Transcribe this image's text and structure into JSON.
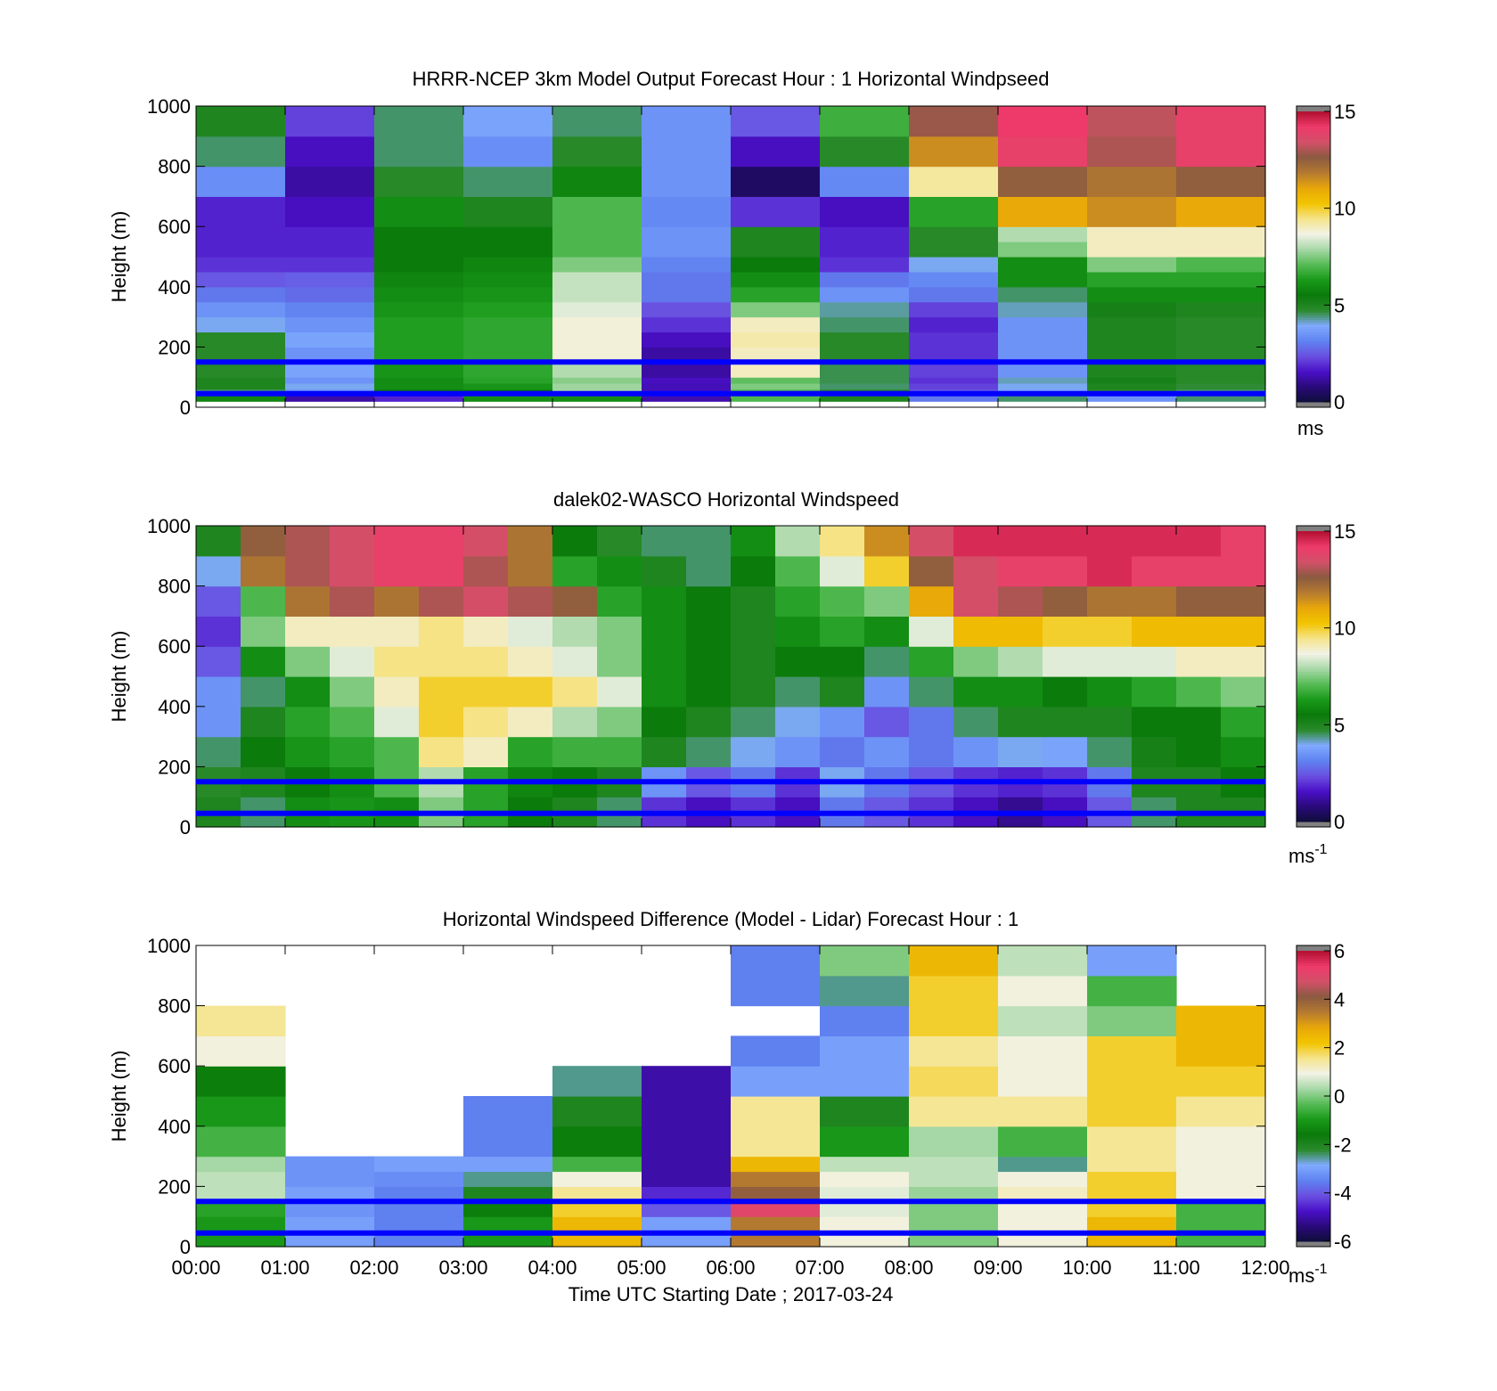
{
  "colormap": [
    "#0e0e3a",
    "#2a0a7a",
    "#4a10c8",
    "#6a50e0",
    "#5f82f0",
    "#80aaff",
    "#2a8a2a",
    "#0a7a0a",
    "#1a9a1a",
    "#55bb55",
    "#a8d8a8",
    "#f2f2e6",
    "#f5e48a",
    "#f2c400",
    "#e8a70a",
    "#b57a30",
    "#8a5a40",
    "#d25068",
    "#ee3a6a",
    "#b01030"
  ],
  "colorbar_end": "#808080",
  "line_color": "#0000ff",
  "panels": [
    {
      "title": "HRRR-NCEP 3km Model Output   Forecast Hour : 1 Horizontal Windpseed",
      "ylabel": "Height (m)",
      "yticks": [
        "0",
        "200",
        "400",
        "600",
        "800",
        "1000"
      ],
      "cbar_ticks": [
        "0",
        "5",
        "10",
        "15"
      ],
      "cbar_unit": "ms",
      "cbar_unit_sup": "",
      "chart_data": {
        "type": "heatmap",
        "x_unit": "hour UTC",
        "y_unit": "m",
        "vmin": 0,
        "vmax": 15,
        "ylim": [
          0,
          1000
        ],
        "xlim": [
          0,
          12
        ],
        "grid": false,
        "overlay_lines_height_m": [
          150,
          45
        ],
        "x_bins": [
          0,
          1,
          2,
          3,
          4,
          5,
          6,
          7,
          8,
          9,
          10,
          11,
          12
        ],
        "y_bins": [
          20,
          40,
          60,
          80,
          100,
          150,
          200,
          250,
          300,
          350,
          400,
          450,
          500,
          550,
          600,
          700,
          800,
          900,
          1000
        ],
        "values": [
          [
            5.8,
            1.2,
            1.8,
            6.0,
            6.0,
            1.3,
            7.0,
            5.0,
            3.0,
            4.5,
            3.5,
            4.5
          ],
          [
            4.5,
            3.5,
            5.5,
            5.5,
            7.8,
            1.5,
            7.0,
            4.8,
            2.5,
            3.8,
            4.8,
            4.5
          ],
          [
            5.0,
            4.0,
            6.0,
            6.2,
            7.8,
            1.4,
            7.5,
            4.5,
            2.2,
            4.0,
            5.0,
            4.7
          ],
          [
            5.0,
            3.5,
            6.0,
            6.5,
            7.6,
            1.5,
            7.2,
            4.6,
            2.0,
            4.2,
            5.2,
            4.8
          ],
          [
            4.8,
            3.8,
            6.2,
            6.6,
            8.0,
            1.2,
            9.0,
            4.6,
            2.2,
            3.5,
            5.0,
            4.8
          ],
          [
            4.8,
            3.5,
            6.4,
            6.6,
            8.8,
            1.2,
            9.0,
            4.8,
            2.0,
            3.5,
            5.0,
            4.8
          ],
          [
            4.8,
            3.8,
            6.4,
            6.6,
            8.8,
            1.5,
            9.2,
            4.8,
            2.0,
            3.5,
            5.0,
            4.8
          ],
          [
            4.0,
            3.5,
            6.4,
            6.6,
            8.8,
            2.0,
            9.0,
            4.5,
            1.8,
            3.5,
            5.0,
            4.8
          ],
          [
            3.5,
            3.2,
            6.2,
            6.4,
            8.5,
            2.4,
            7.5,
            4.3,
            2.2,
            4.2,
            5.2,
            5.0
          ],
          [
            3.0,
            2.8,
            6.0,
            6.2,
            8.2,
            3.0,
            6.5,
            3.5,
            3.0,
            4.5,
            6.0,
            6.0
          ],
          [
            2.5,
            2.6,
            5.8,
            6.0,
            8.2,
            3.0,
            6.0,
            3.0,
            3.3,
            6.0,
            6.5,
            6.5
          ],
          [
            2.0,
            2.0,
            5.5,
            5.8,
            7.5,
            3.2,
            5.5,
            2.0,
            4.0,
            6.0,
            7.5,
            7.0
          ],
          [
            1.8,
            1.8,
            5.5,
            5.5,
            7.0,
            3.5,
            5.0,
            1.8,
            4.8,
            7.5,
            9.0,
            9.0
          ],
          [
            1.8,
            1.8,
            5.5,
            5.5,
            7.0,
            3.5,
            5.0,
            1.8,
            4.8,
            8.0,
            9.0,
            9.0
          ],
          [
            1.8,
            1.5,
            6.0,
            5.0,
            7.0,
            3.3,
            2.0,
            1.5,
            6.5,
            11.0,
            11.5,
            11.0
          ],
          [
            3.4,
            1.2,
            4.8,
            4.5,
            5.8,
            3.5,
            0.5,
            3.3,
            9.3,
            12.5,
            12.0,
            12.5
          ],
          [
            4.5,
            1.5,
            4.5,
            3.4,
            4.8,
            3.5,
            1.5,
            4.8,
            11.5,
            14.0,
            13.0,
            14.0
          ],
          [
            5.0,
            2.2,
            4.5,
            3.8,
            4.5,
            3.5,
            2.5,
            6.8,
            12.8,
            14.2,
            13.2,
            14.0
          ]
        ]
      }
    },
    {
      "title": "dalek02-WASCO  Horizontal Windspeed",
      "ylabel": "Height (m)",
      "yticks": [
        "0",
        "200",
        "400",
        "600",
        "800",
        "1000"
      ],
      "cbar_ticks": [
        "0",
        "5",
        "10",
        "15"
      ],
      "cbar_unit": "ms",
      "cbar_unit_sup": "-1",
      "chart_data": {
        "type": "heatmap",
        "x_unit": "hour UTC",
        "y_unit": "m",
        "vmin": 0,
        "vmax": 15,
        "ylim": [
          0,
          1000
        ],
        "xlim": [
          0,
          12
        ],
        "grid": false,
        "overlay_lines_height_m": [
          150,
          45
        ],
        "x_bins": [
          0,
          0.5,
          1,
          1.5,
          2,
          2.5,
          3,
          3.5,
          4,
          4.5,
          5,
          5.5,
          6,
          6.5,
          7,
          7.5,
          8,
          8.5,
          9,
          9.5,
          10,
          10.5,
          11,
          11.5,
          12
        ],
        "y_bins": [
          0,
          100,
          200,
          300,
          400,
          500,
          600,
          700,
          800,
          900,
          1000
        ],
        "values": [
          [
            5.0,
            4.5,
            6.0,
            6.2,
            6.0,
            7.5,
            6.5,
            5.5,
            5.0,
            4.5,
            2.0,
            1.5,
            2.0,
            1.5,
            3.0,
            2.5,
            2.0,
            1.5,
            1.0,
            1.5,
            2.5,
            4.5,
            5.0,
            5.0
          ],
          [
            4.8,
            5.0,
            5.5,
            6.0,
            7.0,
            8.0,
            6.5,
            5.8,
            5.5,
            5.0,
            3.5,
            2.5,
            3.0,
            2.0,
            4.0,
            3.0,
            2.5,
            2.0,
            1.8,
            2.0,
            3.0,
            5.0,
            5.0,
            5.5
          ],
          [
            4.5,
            5.5,
            6.2,
            6.5,
            7.0,
            9.5,
            9.0,
            6.5,
            6.8,
            6.8,
            5.0,
            4.5,
            4.0,
            3.5,
            3.0,
            3.5,
            3.0,
            3.5,
            4.0,
            3.8,
            4.5,
            5.2,
            5.5,
            6.0
          ],
          [
            3.5,
            5.0,
            6.5,
            7.0,
            8.5,
            10.0,
            9.5,
            9.0,
            8.0,
            7.5,
            5.5,
            5.0,
            4.5,
            4.0,
            3.5,
            2.5,
            3.0,
            4.5,
            5.0,
            5.0,
            5.0,
            5.5,
            5.5,
            6.5
          ],
          [
            3.5,
            4.5,
            6.0,
            7.5,
            9.0,
            10.0,
            10.0,
            10.0,
            9.5,
            8.5,
            6.0,
            5.5,
            5.0,
            4.5,
            5.0,
            3.5,
            4.5,
            6.0,
            6.0,
            5.5,
            6.0,
            6.5,
            7.0,
            7.5
          ],
          [
            2.5,
            6.0,
            7.5,
            8.5,
            9.5,
            9.5,
            9.5,
            9.0,
            8.5,
            7.5,
            6.0,
            5.5,
            5.0,
            5.5,
            5.5,
            4.5,
            6.5,
            7.5,
            8.0,
            8.5,
            8.5,
            8.5,
            9.0,
            9.0
          ],
          [
            2.0,
            7.5,
            9.0,
            9.0,
            9.0,
            9.5,
            9.0,
            8.5,
            8.0,
            7.5,
            6.0,
            5.5,
            5.0,
            6.0,
            6.5,
            6.0,
            8.5,
            10.5,
            10.5,
            10.0,
            10.0,
            10.5,
            10.5,
            10.5
          ],
          [
            2.5,
            7.0,
            12.0,
            13.0,
            12.0,
            13.0,
            13.5,
            13.0,
            12.5,
            6.5,
            6.0,
            5.5,
            5.0,
            6.5,
            7.0,
            7.5,
            11.0,
            13.5,
            13.0,
            12.5,
            12.0,
            12.0,
            12.5,
            12.5
          ],
          [
            4.0,
            12.0,
            13.0,
            13.5,
            14.0,
            14.0,
            13.0,
            12.0,
            6.5,
            6.0,
            5.0,
            4.5,
            5.5,
            7.0,
            8.5,
            10.0,
            12.5,
            13.5,
            14.0,
            14.0,
            14.5,
            14.0,
            14.0,
            14.0
          ],
          [
            5.0,
            12.5,
            13.0,
            13.5,
            14.0,
            14.0,
            13.5,
            12.0,
            5.5,
            4.8,
            4.5,
            4.5,
            6.0,
            8.0,
            9.5,
            11.5,
            13.5,
            14.5,
            14.5,
            14.5,
            14.5,
            14.5,
            14.5,
            14.0
          ]
        ]
      }
    },
    {
      "title": "Horizontal Windspeed Difference (Model - Lidar) Forecast Hour : 1",
      "ylabel": "Height (m)",
      "yticks": [
        "0",
        "200",
        "400",
        "600",
        "800",
        "1000"
      ],
      "cbar_ticks": [
        "-6",
        "-4",
        "-2",
        "0",
        "2",
        "4",
        "6"
      ],
      "cbar_unit": "ms",
      "cbar_unit_sup": "-1",
      "xlabel": "Time UTC  Starting Date ; 2017-03-24",
      "xticks": [
        "00:00",
        "01:00",
        "02:00",
        "03:00",
        "04:00",
        "05:00",
        "06:00",
        "07:00",
        "08:00",
        "09:00",
        "10:00",
        "11:00",
        "12:00"
      ],
      "chart_data": {
        "type": "heatmap",
        "x_unit": "hour UTC",
        "y_unit": "m",
        "vmin": -6,
        "vmax": 6,
        "ylim": [
          0,
          1000
        ],
        "xlim": [
          0,
          12
        ],
        "grid": false,
        "overlay_lines_height_m": [
          150,
          45
        ],
        "x_bins": [
          0,
          1,
          2,
          3,
          4,
          5,
          6,
          7,
          8,
          9,
          10,
          11,
          12
        ],
        "y_bins": [
          0,
          100,
          150,
          200,
          250,
          300,
          400,
          500,
          600,
          700,
          800,
          900,
          1000
        ],
        "values": [
          [
            -1.0,
            -3.0,
            -3.5,
            -1.0,
            2.5,
            -3.0,
            3.5,
            1.0,
            0.0,
            1.0,
            2.5,
            -0.5
          ],
          [
            -0.8,
            -3.2,
            -3.5,
            -1.5,
            2.0,
            -4.0,
            5.0,
            0.8,
            0.0,
            1.0,
            2.0,
            -0.5
          ],
          [
            0.5,
            -3.0,
            -3.5,
            -2.0,
            1.5,
            -4.5,
            4.0,
            0.8,
            0.2,
            1.2,
            2.0,
            1.0
          ],
          [
            0.5,
            -3.2,
            -3.3,
            -2.5,
            1.0,
            -5.0,
            3.5,
            1.0,
            0.5,
            1.0,
            2.0,
            1.0
          ],
          [
            0.3,
            -3.2,
            -3.0,
            -3.0,
            -0.5,
            -5.0,
            2.5,
            0.5,
            0.5,
            -2.5,
            1.5,
            1.0
          ],
          [
            -0.5,
            null,
            null,
            -3.5,
            -1.5,
            -5.0,
            1.5,
            -1.0,
            0.3,
            -0.5,
            1.5,
            1.0
          ],
          [
            -1.0,
            null,
            null,
            -3.5,
            -2.0,
            -5.0,
            1.5,
            -2.0,
            1.5,
            1.5,
            2.0,
            1.5
          ],
          [
            -1.5,
            null,
            null,
            null,
            -2.5,
            -5.0,
            -3.0,
            -3.0,
            1.8,
            1.0,
            2.0,
            2.0
          ],
          [
            1.0,
            null,
            null,
            null,
            null,
            null,
            -3.5,
            -3.0,
            1.5,
            1.0,
            2.0,
            2.5
          ],
          [
            1.5,
            null,
            null,
            null,
            null,
            null,
            null,
            -3.5,
            2.0,
            0.5,
            0.0,
            2.5
          ],
          [
            null,
            null,
            null,
            null,
            null,
            null,
            -3.5,
            -2.5,
            2.0,
            1.0,
            -0.5,
            null
          ],
          [
            null,
            null,
            null,
            null,
            null,
            null,
            -3.5,
            0.0,
            2.5,
            0.5,
            -3.0,
            null
          ]
        ]
      }
    }
  ]
}
